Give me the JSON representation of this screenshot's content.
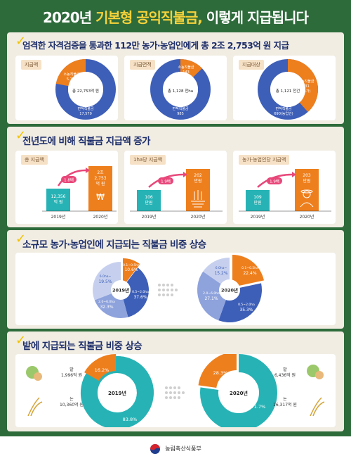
{
  "header": {
    "title_pre": "2020년 ",
    "title_hl": "기본형 공익직불금,",
    "title_post": " 이렇게 지급됩니다"
  },
  "s1": {
    "title": "엄격한 자격검증을 통과한 112만 농가·농업인에게 총 2조 2,753억 원 지급",
    "cards": [
      {
        "tag": "지급액",
        "center": "총 22,753억 원",
        "small_label": "소농직불금",
        "small_value": "5,174",
        "large_label": "면적직불금",
        "large_value": "17,579",
        "small_pct": 0.227
      },
      {
        "tag": "지급면적",
        "center": "총 1,128 천ha",
        "small_label": "소농직불금",
        "small_value": "143",
        "large_label": "면적직불금",
        "large_value": "985",
        "small_pct": 0.127
      },
      {
        "tag": "지급대상",
        "center": "총 1,121 천건",
        "small_label": "소농직불금",
        "small_value": "431",
        "small_unit": "(농가)",
        "large_label": "면적직불금",
        "large_value": "690(농업인)",
        "small_pct": 0.384
      }
    ]
  },
  "s2": {
    "title": "전년도에 비해 직불금 지급액 증가",
    "cards": [
      {
        "tag": "총 지급액",
        "mult": "1.8배",
        "v2019": "12,356",
        "u2019": "억 원",
        "v2020a": "2조",
        "v2020b": "2,753",
        "v2020c": "억 원",
        "y1": "2019년",
        "y2": "2020년"
      },
      {
        "tag": "1ha당 지급액",
        "mult": "1.9배",
        "v2019": "106",
        "u2019": "만원",
        "v2020a": "202",
        "v2020b": "만원",
        "y1": "2019년",
        "y2": "2020년"
      },
      {
        "tag": "농가·농업인당 지급액",
        "mult": "1.9배",
        "v2019": "109",
        "u2019": "만원",
        "v2020a": "203",
        "v2020b": "만원",
        "y1": "2019년",
        "y2": "2020년"
      }
    ]
  },
  "s3": {
    "title": "소규모 농가·농업인에 지급되는 직불금 비중 상승",
    "y2019": "2019년",
    "y2020": "2020년",
    "labels": [
      "0.1~0.5ha",
      "0.5~2.0ha",
      "2.0~6.0ha",
      "6.0ha~"
    ],
    "pct2019": [
      "10.6%",
      "37.6%",
      "32.3%",
      "19.5%"
    ],
    "pct2020": [
      "22.4%",
      "35.3%",
      "27.1%",
      "15.2%"
    ]
  },
  "s4": {
    "title": "밭에 지급되는 직불금 비중 상승",
    "y2019": "2019년",
    "y2020": "2020년",
    "field_label": "밭",
    "paddy_label": "논",
    "field2019": "1,996억 원",
    "paddy2019": "10,360억 원",
    "field2020": "6,436억 원",
    "paddy2020": "16,317억 원",
    "pf2019": "16.2%",
    "pp2019": "83.8%",
    "pf2020": "28.3%",
    "pp2020": "71.7%"
  },
  "footer": {
    "ministry": "농림축산식품부"
  },
  "colors": {
    "blue": "#3e5fb8",
    "orange": "#ee7f1d",
    "teal": "#27b3b5",
    "navy": "#1f2f6b",
    "green": "#2e6b3b",
    "pink": "#e8477a"
  }
}
